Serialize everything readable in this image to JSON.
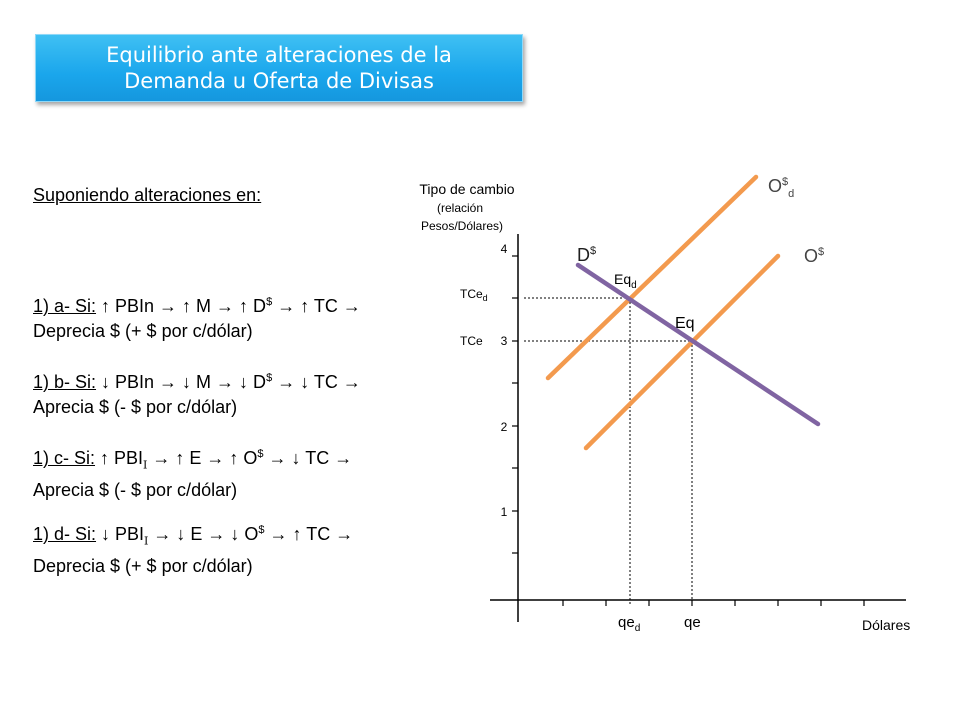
{
  "title": {
    "line1": "Equilibrio ante alteraciones de la",
    "line2": "Demanda u Oferta de Divisas"
  },
  "intro": "Suponiendo alteraciones en:",
  "cases": [
    {
      "prefix": "1) a- Si:",
      "pre": " ↑ PBIn → ↑ M → ↑ D",
      "sup": "$",
      "post": " → ↑ TC →",
      "line2": "Deprecia $ (+ $ por c/dólar)"
    },
    {
      "prefix": "1) b- Si:",
      "pre": " ↓ PBIn → ↓ M → ↓ D",
      "sup": "$",
      "post": " → ↓ TC →",
      "line2": "Aprecia $ (- $ por c/dólar)"
    },
    {
      "prefix": "1) c- Si:",
      "pre": " ↑ PBI",
      "sub": "I",
      "mid": " → ↑ E → ↑ O",
      "sup": "$",
      "post": " → ↓ TC →",
      "line2": "Aprecia $ (- $ por c/dólar)"
    },
    {
      "prefix": "1) d- Si:",
      "pre": " ↓ PBI",
      "sub": "I",
      "mid": " → ↓ E → ↓ O",
      "sup": "$",
      "post": " → ↑ TC →",
      "line2": "Deprecia $ (+ $ por c/dólar)"
    }
  ],
  "diagram": {
    "y_axis_title": "Tipo de cambio",
    "y_axis_sub1": "(relación",
    "y_axis_sub2": "Pesos/Dólares)",
    "x_axis_title": "Dólares",
    "y_ticks": [
      "1",
      "2",
      "3",
      "4"
    ],
    "tce_label": "TCe",
    "tced_label": "TCe",
    "tced_sub": "d",
    "qe_label": "qe",
    "qed_label": "qe",
    "qed_sub": "d",
    "eq_label": "Eq",
    "eqd_label": "Eq",
    "eqd_sub": "d",
    "demand_label": "D",
    "demand_sup": "$",
    "supply_label": "O",
    "supply_sup": "$",
    "supply_d_label": "O",
    "supply_d_sup": "$",
    "supply_d_sub": "d",
    "colors": {
      "supply": "#f39a4e",
      "demand": "#8064a2",
      "axis": "#000000",
      "dashed": "#000000"
    }
  }
}
